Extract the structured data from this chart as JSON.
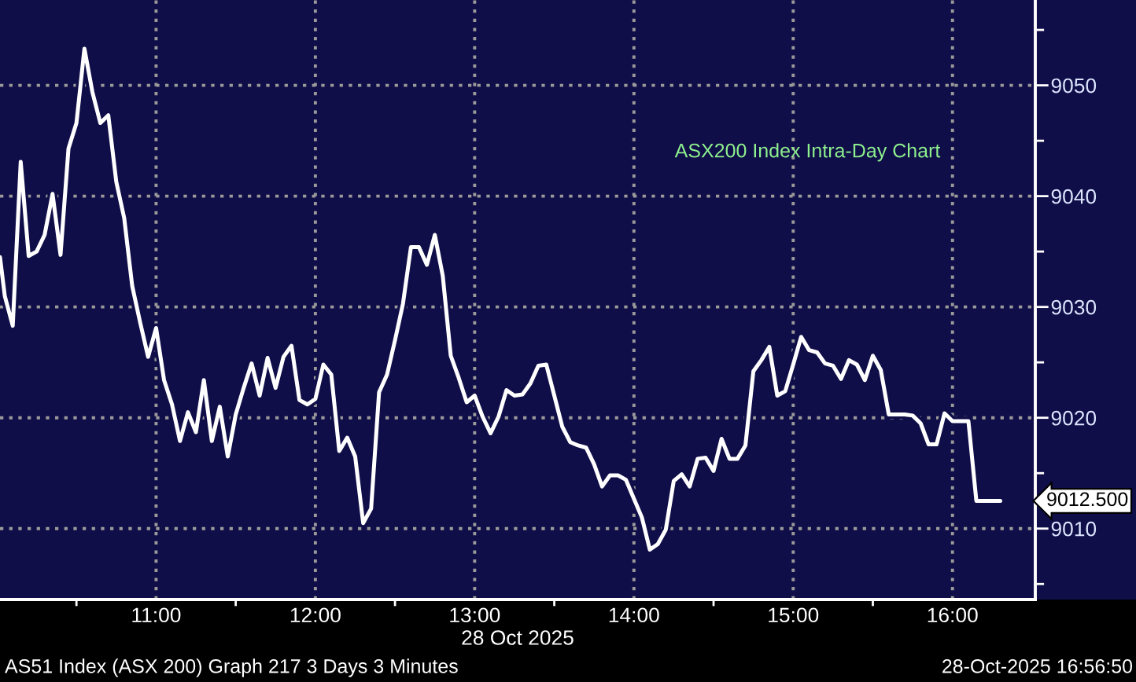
{
  "chart_data": {
    "type": "line",
    "title": "ASX200 Index Intra-Day Chart",
    "xlabel": "28 Oct 2025",
    "x": [
      10.02,
      10.05,
      10.1,
      10.15,
      10.2,
      10.25,
      10.3,
      10.35,
      10.4,
      10.45,
      10.5,
      10.55,
      10.6,
      10.65,
      10.7,
      10.75,
      10.8,
      10.85,
      10.9,
      10.95,
      11,
      11.05,
      11.1,
      11.15,
      11.2,
      11.25,
      11.3,
      11.35,
      11.4,
      11.45,
      11.5,
      11.55,
      11.6,
      11.65,
      11.7,
      11.75,
      11.8,
      11.85,
      11.9,
      11.95,
      12,
      12.05,
      12.1,
      12.15,
      12.2,
      12.25,
      12.3,
      12.35,
      12.4,
      12.45,
      12.5,
      12.55,
      12.6,
      12.65,
      12.7,
      12.75,
      12.8,
      12.85,
      12.9,
      12.95,
      13,
      13.05,
      13.1,
      13.15,
      13.2,
      13.25,
      13.3,
      13.35,
      13.4,
      13.45,
      13.5,
      13.55,
      13.6,
      13.65,
      13.7,
      13.75,
      13.8,
      13.85,
      13.9,
      13.95,
      14,
      14.05,
      14.1,
      14.15,
      14.2,
      14.25,
      14.3,
      14.35,
      14.4,
      14.45,
      14.5,
      14.55,
      14.6,
      14.65,
      14.7,
      14.75,
      14.8,
      14.85,
      14.9,
      14.95,
      15,
      15.05,
      15.1,
      15.15,
      15.2,
      15.25,
      15.3,
      15.35,
      15.4,
      15.45,
      15.5,
      15.55,
      15.6,
      15.65,
      15.7,
      15.75,
      15.8,
      15.85,
      15.9,
      15.95,
      16,
      16.05,
      16.1,
      16.15,
      16.2,
      16.25,
      16.3
    ],
    "series": [
      {
        "color": "#ffffff",
        "values": [
          9034.5,
          9031.0,
          9028.3,
          9043.1,
          9034.6,
          9035.0,
          9036.5,
          9040.2,
          9034.7,
          9044.3,
          9046.6,
          9053.3,
          9049.4,
          9046.6,
          9047.3,
          9041.3,
          9038.0,
          9031.9,
          9028.6,
          9025.5,
          9028.1,
          9023.4,
          9021.2,
          9017.9,
          9020.5,
          9018.7,
          9023.4,
          9017.9,
          9021.0,
          9016.5,
          9020.3,
          9022.7,
          9024.9,
          9022.0,
          9025.4,
          9022.7,
          9025.5,
          9026.5,
          9021.6,
          9021.2,
          9021.7,
          9024.8,
          9023.9,
          9017.0,
          9018.2,
          9016.5,
          9010.5,
          9011.8,
          9022.3,
          9023.9,
          9027.0,
          9030.3,
          9035.4,
          9035.4,
          9033.8,
          9036.5,
          9032.8,
          9025.6,
          9023.6,
          9021.4,
          9022.0,
          9020.1,
          9018.6,
          9020.1,
          9022.5,
          9022.0,
          9022.1,
          9023.1,
          9024.7,
          9024.8,
          9022.0,
          9019.2,
          9017.8,
          9017.5,
          9017.3,
          9015.8,
          9013.8,
          9014.8,
          9014.8,
          9014.4,
          9012.7,
          9011.0,
          9008.1,
          9008.6,
          9009.9,
          9014.3,
          9014.9,
          9013.8,
          9016.3,
          9016.4,
          9015.2,
          9018.1,
          9016.3,
          9016.3,
          9017.5,
          9024.2,
          9025.2,
          9026.4,
          9022.0,
          9022.4,
          9024.8,
          9027.3,
          9026.1,
          9025.9,
          9024.9,
          9024.7,
          9023.5,
          9025.2,
          9024.8,
          9023.4,
          9025.6,
          9024.3,
          9020.3,
          9020.3,
          9020.3,
          9020.2,
          9019.5,
          9017.6,
          9017.6,
          9020.4,
          9019.7,
          9019.7,
          9019.7,
          9012.5,
          9012.5,
          9012.5,
          9012.5
        ]
      }
    ],
    "xlim": [
      10.02,
      16.52
    ],
    "ylim": [
      9003.6,
      9057.7
    ],
    "xticks": [
      {
        "value": 10.5,
        "label": null
      },
      {
        "value": 11,
        "label": "11:00"
      },
      {
        "value": 11.5,
        "label": null
      },
      {
        "value": 12,
        "label": "12:00"
      },
      {
        "value": 12.5,
        "label": null
      },
      {
        "value": 13,
        "label": "13:00"
      },
      {
        "value": 13.5,
        "label": null
      },
      {
        "value": 14,
        "label": "14:00"
      },
      {
        "value": 14.5,
        "label": null
      },
      {
        "value": 15,
        "label": "15:00"
      },
      {
        "value": 15.5,
        "label": null
      },
      {
        "value": 16,
        "label": "16:00"
      }
    ],
    "yticks": [
      {
        "value": 9005,
        "label": null
      },
      {
        "value": 9010,
        "label": "9010"
      },
      {
        "value": 9015,
        "label": null
      },
      {
        "value": 9020,
        "label": "9020"
      },
      {
        "value": 9025,
        "label": null
      },
      {
        "value": 9030,
        "label": "9030"
      },
      {
        "value": 9035,
        "label": null
      },
      {
        "value": 9040,
        "label": "9040"
      },
      {
        "value": 9045,
        "label": null
      },
      {
        "value": 9050,
        "label": "9050"
      },
      {
        "value": 9055,
        "label": null
      }
    ],
    "grid": true,
    "line_style": "solid",
    "annotations": [
      "9012.500",
      "AS51 Index (ASX 200) Graph 217 3 Days 3 Minutes",
      "28-Oct-2025 16:56:50"
    ]
  }
}
